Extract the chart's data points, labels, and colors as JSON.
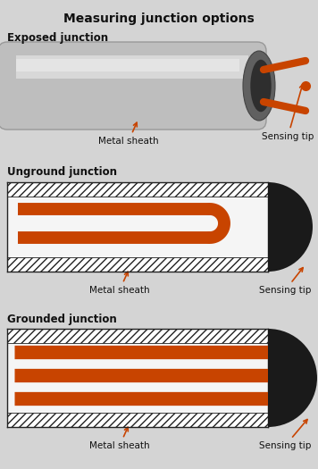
{
  "title": "Measuring junction options",
  "title_fontsize": 10,
  "bg_color": "#d4d4d4",
  "section_labels": [
    "Exposed junction",
    "Unground junction",
    "Grounded junction"
  ],
  "label_fontsize": 8.5,
  "orange_color": "#c84400",
  "tip_color": "#1a1a1a",
  "metal_sheath_label": "Metal sheath",
  "sensing_tip_label": "Sensing tip",
  "exposed_body_color": "#cacaca",
  "exposed_body_light": "#e2e2e2",
  "exposed_cap_color": "#555555",
  "exposed_inner_color": "#333333"
}
